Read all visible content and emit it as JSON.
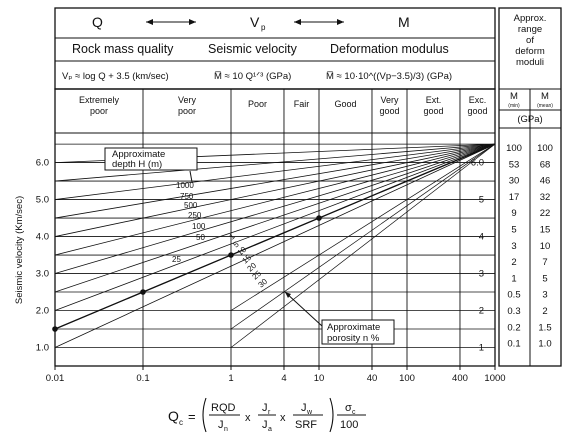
{
  "header": {
    "symbols": [
      "Q",
      "V",
      "M"
    ],
    "vp_subscript": "p",
    "descriptions": [
      "Rock mass quality",
      "Seismic velocity",
      "Deformation modulus"
    ],
    "eq_vp": "Vₚ ≈ log Q + 3.5 (km/sec)",
    "eq_m1": "M̅ ≈ 10 Q¹ᐟ³ (GPa)",
    "eq_m2": "M̅ ≈ 10·10^((Vp−3.5)/3) (GPa)"
  },
  "right_panel": {
    "title_lines": [
      "Approx.",
      "range",
      "of",
      "deform",
      "moduli"
    ],
    "col_headers": [
      "M",
      "M"
    ],
    "col_sub": [
      "(min)",
      "(mean)"
    ],
    "unit": "(GPa)",
    "min_values": [
      "100",
      "53",
      "30",
      "17",
      "9",
      "5",
      "3",
      "2",
      "1",
      "0.5",
      "0.3",
      "0.2",
      "0.1"
    ],
    "mean_values": [
      "100",
      "68",
      "46",
      "32",
      "22",
      "15",
      "10",
      "7",
      "5",
      "3",
      "2",
      "1.5",
      "1.0"
    ]
  },
  "classes": [
    "Extremely poor",
    "Very poor",
    "Poor",
    "Fair",
    "Good",
    "Very good",
    "Ext. good",
    "Exc. good"
  ],
  "annotations": {
    "depth": [
      "Approximate",
      "depth H (m)"
    ],
    "porosity": [
      "Approximate",
      "porosity n %"
    ],
    "depth_values": [
      "1000",
      "750",
      "500",
      "250",
      "100",
      "50",
      "25"
    ],
    "porosity_values": [
      "1",
      "5",
      "10",
      "15",
      "20",
      "25",
      "30"
    ]
  },
  "chart_data": {
    "type": "line",
    "xscale": "log",
    "x_ticks": [
      "0.01",
      "0.1",
      "1",
      "4",
      "10",
      "40",
      "100",
      "400",
      "1000"
    ],
    "y_ticks_left": [
      "1.0",
      "2.0",
      "3.0",
      "4.0",
      "5.0",
      "6.0"
    ],
    "y_ticks_right": [
      "1",
      "2",
      "3",
      "4",
      "5",
      "6.0"
    ],
    "ylabel": "Seismic velocity (Km/sec)",
    "xlim": [
      0.01,
      1000
    ],
    "ylim": [
      0.5,
      6.8
    ],
    "convergence_point": {
      "x": 1000,
      "y": 6.5
    },
    "markers": [
      {
        "x": 0.01,
        "y": 1.5
      },
      {
        "x": 0.1,
        "y": 2.5
      },
      {
        "x": 1,
        "y": 3.5
      },
      {
        "x": 10,
        "y": 4.5
      }
    ]
  },
  "formula": {
    "lhs": "Q",
    "lhs_sub": "c",
    "num": [
      "RQD",
      "J",
      "J",
      "σ"
    ],
    "num_subs": [
      "",
      "r",
      "w",
      "c"
    ],
    "den": [
      "J",
      "J",
      "SRF",
      "100"
    ],
    "den_subs": [
      "n",
      "a",
      "",
      ""
    ],
    "times": "x",
    "eq": "="
  }
}
